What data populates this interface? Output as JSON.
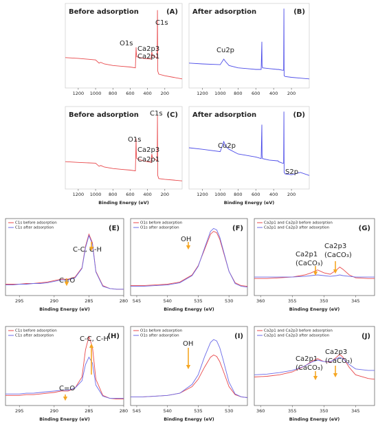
{
  "chart_data": [
    {
      "type": "line",
      "title": "Before adsorption",
      "panel_label": "(A)",
      "annotations": [
        "C1s",
        "O1s",
        "Ca2p3",
        "Ca2p1"
      ],
      "x": [
        1350,
        1200,
        1000,
        960,
        940,
        900,
        800,
        700,
        600,
        540,
        532,
        530,
        525,
        450,
        360,
        350,
        345,
        300,
        288,
        285,
        282,
        270,
        200,
        100,
        0
      ],
      "xlim": [
        1350,
        0
      ],
      "ylim": [
        0,
        100
      ],
      "xticks": [
        1200,
        1000,
        800,
        600,
        400,
        200
      ],
      "series": [
        {
          "color": "#e8474a",
          "values": [
            35,
            34,
            32,
            28,
            29,
            27,
            25,
            24,
            23,
            22,
            48,
            42,
            36,
            34,
            33,
            42,
            38,
            35,
            34,
            95,
            18,
            14,
            12,
            10,
            8
          ]
        }
      ]
    },
    {
      "type": "line",
      "title": "After adsorption",
      "panel_label": "(B)",
      "annotations": [
        "Cu2p"
      ],
      "x": [
        1350,
        1200,
        1000,
        960,
        940,
        900,
        800,
        700,
        600,
        540,
        532,
        530,
        525,
        450,
        360,
        350,
        345,
        300,
        288,
        285,
        282,
        270,
        200,
        100,
        0
      ],
      "xlim": [
        1350,
        0
      ],
      "ylim": [
        0,
        100
      ],
      "xticks": [
        1200,
        1000,
        800,
        600,
        400,
        200
      ],
      "series": [
        {
          "color": "#4a4ae8",
          "values": [
            28,
            27,
            26,
            33,
            30,
            25,
            22,
            21,
            20,
            20,
            55,
            25,
            22,
            21,
            20,
            20,
            20,
            19,
            19,
            97,
            12,
            11,
            10,
            9,
            8
          ]
        }
      ]
    },
    {
      "type": "line",
      "title": "Before adsorption",
      "panel_label": "(C)",
      "annotations": [
        "C1s",
        "O1s",
        "Ca2p3",
        "Ca2p1"
      ],
      "x": [
        1350,
        1200,
        1000,
        960,
        940,
        900,
        800,
        700,
        600,
        540,
        532,
        530,
        525,
        450,
        360,
        350,
        345,
        300,
        288,
        285,
        282,
        270,
        200,
        100,
        0
      ],
      "xlim": [
        1350,
        0
      ],
      "ylim": [
        0,
        100
      ],
      "xticks": [
        1200,
        1000,
        800,
        600,
        400,
        200
      ],
      "xlabel": "Binding Energy (eV)",
      "series": [
        {
          "color": "#e8474a",
          "values": [
            32,
            31,
            30,
            26,
            27,
            25,
            23,
            22,
            21,
            20,
            62,
            45,
            36,
            33,
            31,
            42,
            38,
            34,
            33,
            92,
            14,
            10,
            9,
            8,
            7
          ]
        }
      ]
    },
    {
      "type": "line",
      "title": "After adsorption",
      "panel_label": "(D)",
      "annotations": [
        "Cu2p",
        "S2p"
      ],
      "x": [
        1350,
        1200,
        1000,
        960,
        940,
        900,
        800,
        700,
        600,
        540,
        532,
        530,
        525,
        450,
        360,
        350,
        345,
        300,
        288,
        285,
        282,
        270,
        200,
        100,
        0
      ],
      "xlim": [
        1350,
        0
      ],
      "ylim": [
        0,
        100
      ],
      "xticks": [
        1200,
        1000,
        800,
        600,
        400,
        200
      ],
      "xlabel": "Binding Energy (eV)",
      "series": [
        {
          "color": "#4a4ae8",
          "values": [
            50,
            48,
            45,
            58,
            52,
            48,
            42,
            40,
            38,
            36,
            80,
            40,
            36,
            34,
            33,
            33,
            32,
            30,
            30,
            97,
            18,
            16,
            15,
            18,
            14
          ]
        }
      ]
    },
    {
      "type": "line",
      "panel_label": "(E)",
      "annotations": [
        "C-C, C-H",
        "C=O"
      ],
      "x": [
        297,
        296,
        295,
        294,
        293,
        292,
        291,
        290,
        289,
        288,
        287,
        286,
        285.5,
        285,
        284.5,
        284,
        283,
        282,
        281,
        280
      ],
      "xlim": [
        297,
        280
      ],
      "ylim": [
        0,
        100
      ],
      "xticks": [
        295,
        290,
        285,
        280
      ],
      "xlabel": "Binding Energy (eV)",
      "series": [
        {
          "name": "C1s before adsorption",
          "color": "#e8474a",
          "values": [
            12,
            12,
            12,
            13,
            13,
            14,
            15,
            17,
            19,
            19,
            22,
            35,
            65,
            82,
            70,
            30,
            10,
            6,
            5,
            5
          ]
        },
        {
          "name": "C1s after adsorption",
          "color": "#6a6ae8",
          "values": [
            11,
            11,
            12,
            12,
            13,
            13,
            14,
            16,
            18,
            18,
            21,
            34,
            63,
            80,
            68,
            29,
            9,
            6,
            5,
            5
          ]
        }
      ]
    },
    {
      "type": "line",
      "panel_label": "(F)",
      "annotations": [
        "OH"
      ],
      "x": [
        546,
        544,
        542,
        540,
        538,
        536,
        535,
        534,
        533,
        532.5,
        532,
        531.5,
        531,
        530,
        529,
        528,
        527
      ],
      "xlim": [
        546,
        527
      ],
      "ylim": [
        0,
        100
      ],
      "xticks": [
        545,
        540,
        535,
        530
      ],
      "xlabel": "Binding Energy (eV)",
      "series": [
        {
          "name": "O1s before adsorption",
          "color": "#e8474a",
          "values": [
            10,
            10,
            11,
            12,
            15,
            25,
            38,
            60,
            82,
            86,
            84,
            75,
            60,
            30,
            14,
            10,
            9
          ]
        },
        {
          "name": "O1s after adsorption",
          "color": "#6a6ae8",
          "values": [
            9,
            9,
            10,
            11,
            14,
            24,
            37,
            62,
            86,
            90,
            88,
            78,
            62,
            30,
            13,
            9,
            8
          ]
        }
      ]
    },
    {
      "type": "line",
      "panel_label": "(G)",
      "annotations": [
        "Ca2p1",
        "(CaCO₃)",
        "Ca2p3",
        "(CaCO₃)"
      ],
      "x": [
        361,
        359,
        357,
        355,
        353,
        352,
        351,
        350,
        349,
        348,
        347.5,
        347,
        346,
        345,
        343,
        342
      ],
      "xlim": [
        361,
        342
      ],
      "ylim": [
        0,
        100
      ],
      "xticks": [
        360,
        355,
        350,
        345
      ],
      "xlabel": "Binding Energy (eV)",
      "series": [
        {
          "name": "Ca2p1 and Ca2p3 before adsorption",
          "color": "#e8474a",
          "values": [
            20,
            20,
            21,
            22,
            25,
            28,
            32,
            28,
            26,
            32,
            36,
            33,
            25,
            21,
            20,
            20
          ]
        },
        {
          "name": "Ca2p1 and Ca2p3 after adsorption",
          "color": "#6a6ae8",
          "values": [
            22,
            22,
            22,
            22,
            23,
            24,
            25,
            24,
            23,
            24,
            25,
            24,
            23,
            22,
            22,
            22
          ]
        }
      ]
    },
    {
      "type": "line",
      "panel_label": "(H)",
      "annotations": [
        "C-C, C-H",
        "C=O"
      ],
      "x": [
        297,
        296,
        295,
        294,
        293,
        292,
        291,
        290,
        289,
        288,
        287,
        286,
        285.5,
        285,
        284.5,
        284,
        283,
        282,
        281,
        280
      ],
      "xlim": [
        297,
        280
      ],
      "ylim": [
        0,
        100
      ],
      "xticks": [
        295,
        290,
        285,
        280
      ],
      "xlabel": "Binding Energy (eV)",
      "series": [
        {
          "name": "C1s before adsorption",
          "color": "#e8474a",
          "values": [
            10,
            10,
            10,
            11,
            11,
            12,
            13,
            14,
            16,
            16,
            20,
            35,
            72,
            90,
            76,
            32,
            10,
            6,
            5,
            5
          ]
        },
        {
          "name": "C1s after adsorption",
          "color": "#6a6ae8",
          "values": [
            12,
            12,
            12,
            13,
            13,
            14,
            15,
            16,
            17,
            17,
            20,
            30,
            52,
            62,
            54,
            24,
            9,
            6,
            6,
            6
          ]
        }
      ]
    },
    {
      "type": "line",
      "panel_label": "(I)",
      "annotations": [
        "OH"
      ],
      "x": [
        546,
        544,
        542,
        540,
        538,
        536,
        535,
        534,
        533,
        532.5,
        532,
        531.5,
        531,
        530,
        529,
        528,
        527
      ],
      "xlim": [
        546,
        527
      ],
      "ylim": [
        0,
        100
      ],
      "xticks": [
        545,
        540,
        535,
        530
      ],
      "xlabel": "Binding Energy (eV)",
      "series": [
        {
          "name": "O1s before adsorption",
          "color": "#e8474a",
          "values": [
            8,
            8,
            9,
            10,
            13,
            22,
            32,
            48,
            62,
            65,
            63,
            56,
            45,
            22,
            11,
            8,
            7
          ]
        },
        {
          "name": "O1s after adsorption",
          "color": "#6a6ae8",
          "values": [
            8,
            8,
            9,
            10,
            13,
            25,
            38,
            62,
            82,
            86,
            84,
            75,
            60,
            28,
            12,
            8,
            7
          ]
        }
      ]
    },
    {
      "type": "line",
      "panel_label": "(J)",
      "annotations": [
        "Ca2p1",
        "(CaCO₃)",
        "Ca2p3",
        "(CaCO₃)"
      ],
      "x": [
        361,
        359,
        357,
        355,
        353,
        352,
        351,
        350,
        349,
        348,
        347.5,
        347,
        346,
        345,
        343,
        342
      ],
      "xlim": [
        361,
        342
      ],
      "ylim": [
        0,
        100
      ],
      "xticks": [
        360,
        355,
        350,
        345
      ],
      "xlabel": "Binding Energy (eV)",
      "series": [
        {
          "name": "Ca2p1 and Ca2p3 before adsorption",
          "color": "#e8474a",
          "values": [
            35,
            36,
            38,
            42,
            50,
            56,
            60,
            56,
            55,
            62,
            66,
            62,
            48,
            38,
            33,
            32
          ]
        },
        {
          "name": "Ca2p1 and Ca2p3 after adsorption",
          "color": "#6a6ae8",
          "values": [
            38,
            39,
            41,
            44,
            50,
            55,
            58,
            56,
            56,
            60,
            62,
            60,
            52,
            46,
            44,
            44
          ]
        }
      ]
    }
  ]
}
